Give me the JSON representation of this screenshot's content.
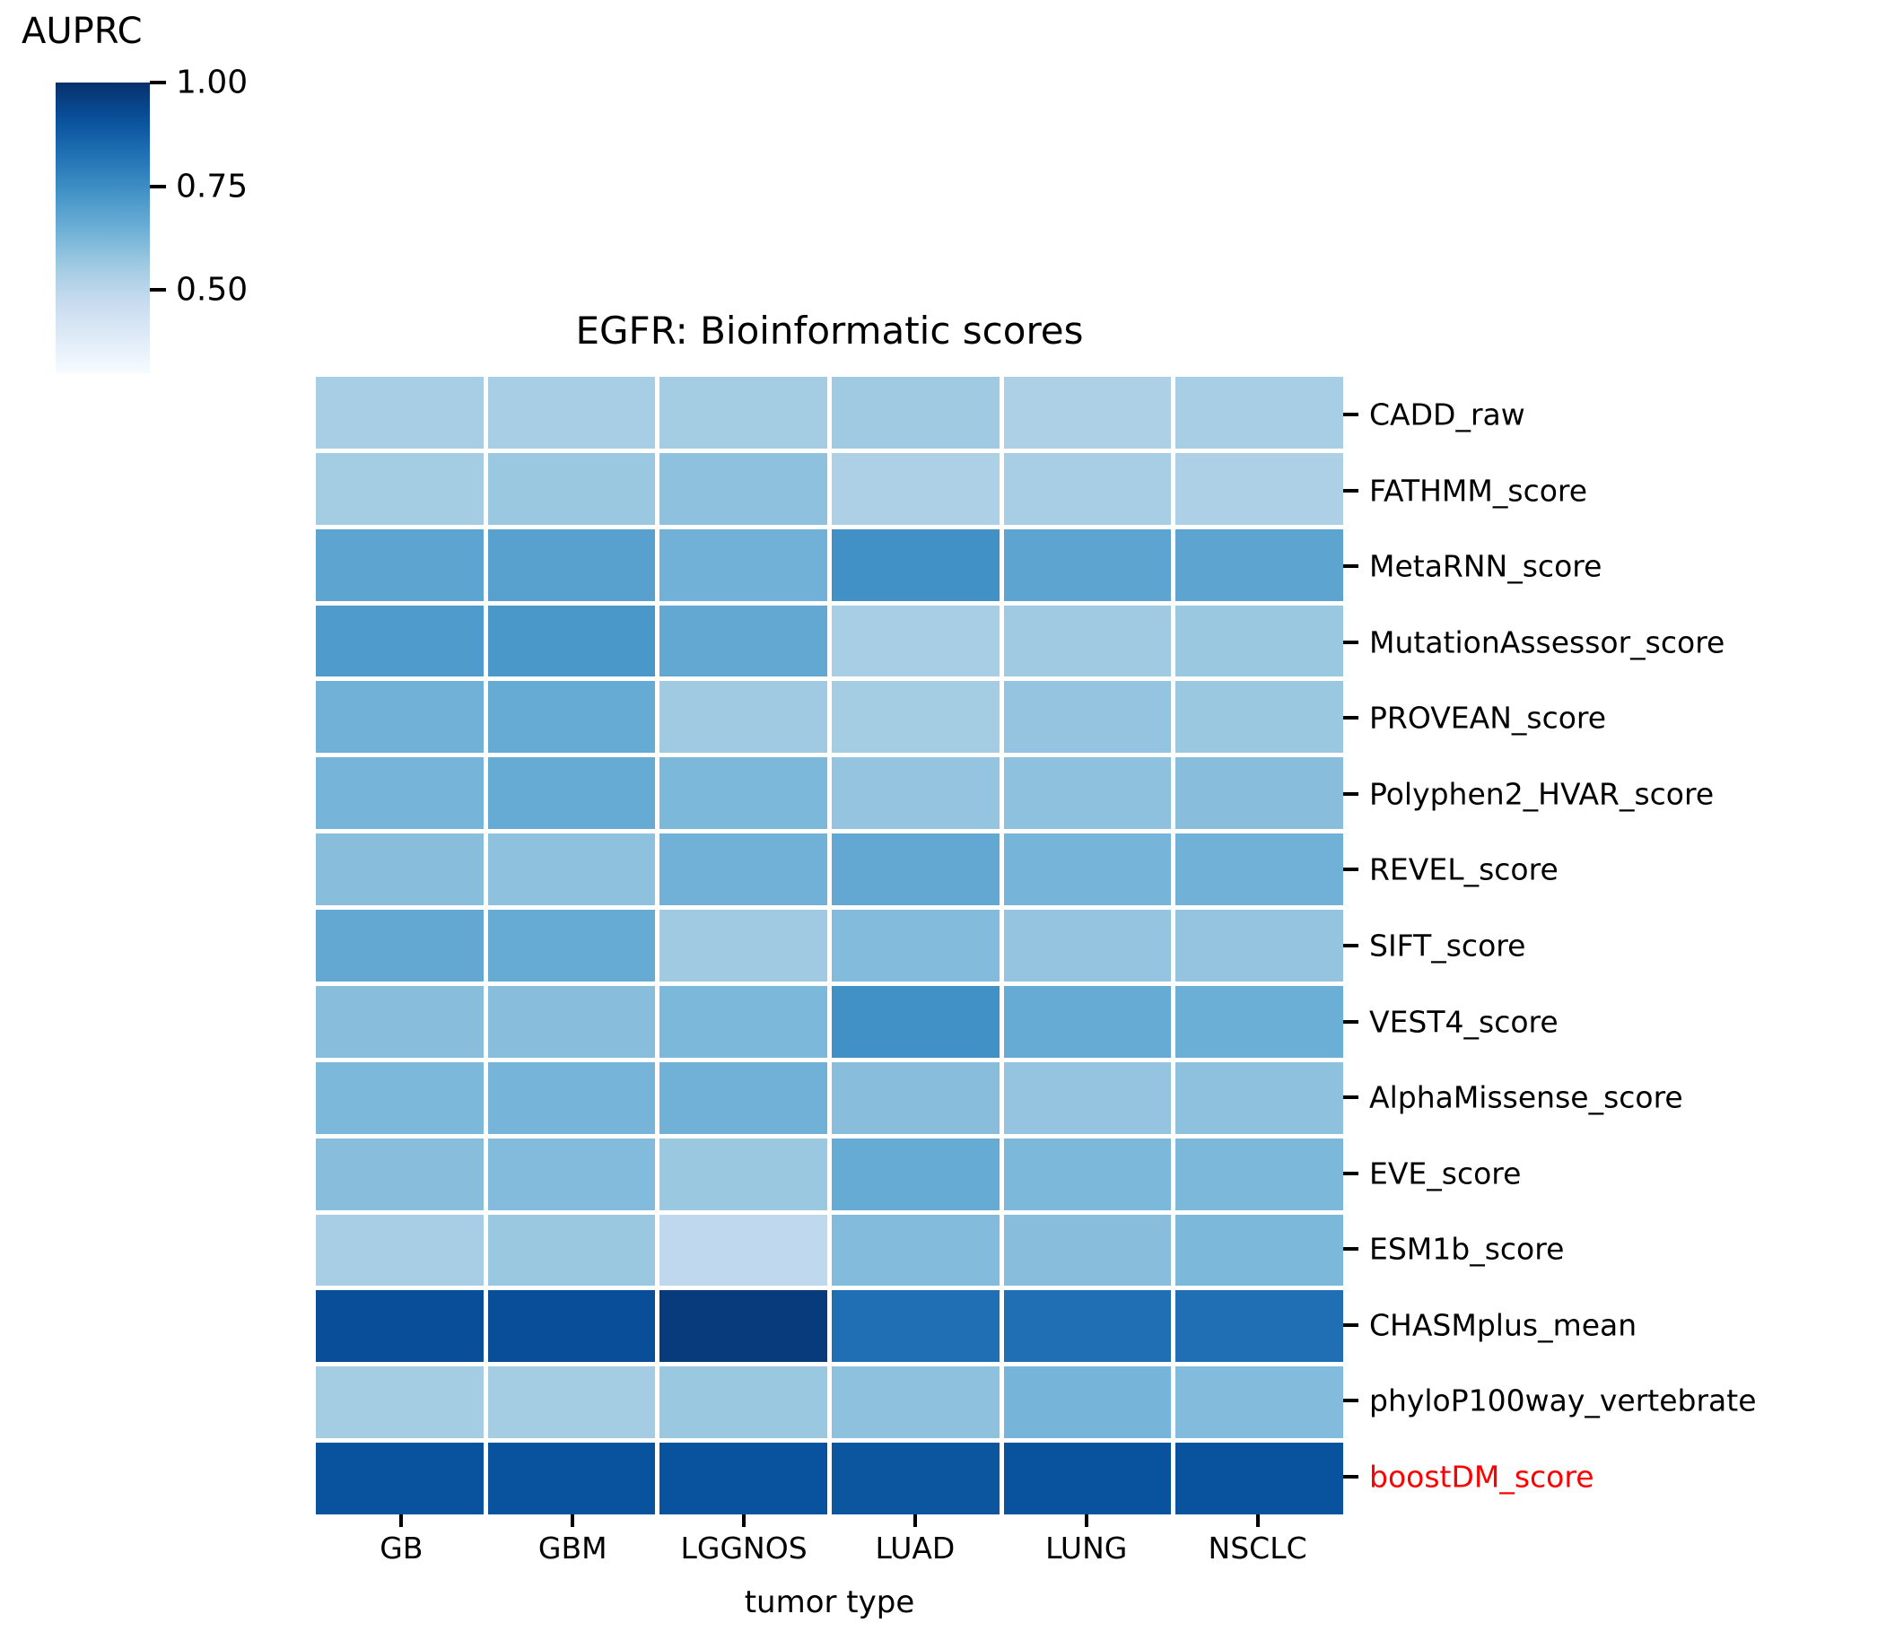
{
  "figure": {
    "background": "#ffffff",
    "text_color": "#000000",
    "highlight_color": "#ff0000",
    "cell_gap_color": "#ffffff"
  },
  "chart_data": {
    "type": "heatmap",
    "title": "EGFR: Bioinformatic scores",
    "xlabel": "tumor type",
    "ylabel": "",
    "grid": false,
    "legend_position": "colorbar-top-left",
    "colorbar": {
      "label": "AUPRC",
      "vmin": 0.3,
      "vmax": 1.0,
      "tick_labels": [
        "1.00",
        "0.75",
        "0.50"
      ],
      "tick_values": [
        1.0,
        0.75,
        0.5
      ],
      "colormap": "Blues",
      "colormap_stops": [
        "#f7fbff",
        "#deebf7",
        "#c6dbef",
        "#9ecae1",
        "#6baed6",
        "#4292c6",
        "#2171b5",
        "#08519c",
        "#08306b"
      ]
    },
    "categories": [
      "GB",
      "GBM",
      "LGGNOS",
      "LUAD",
      "LUNG",
      "NSCLC"
    ],
    "rows": [
      {
        "label": "CADD_raw",
        "highlighted": false,
        "values": [
          0.54,
          0.54,
          0.55,
          0.56,
          0.53,
          0.54
        ]
      },
      {
        "label": "FATHMM_score",
        "highlighted": false,
        "values": [
          0.55,
          0.57,
          0.59,
          0.53,
          0.54,
          0.53
        ]
      },
      {
        "label": "MetaRNN_score",
        "highlighted": false,
        "values": [
          0.68,
          0.69,
          0.64,
          0.74,
          0.68,
          0.68
        ]
      },
      {
        "label": "MutationAssessor_score",
        "highlighted": false,
        "values": [
          0.71,
          0.72,
          0.67,
          0.54,
          0.56,
          0.57
        ]
      },
      {
        "label": "PROVEAN_score",
        "highlighted": false,
        "values": [
          0.64,
          0.66,
          0.56,
          0.55,
          0.58,
          0.57
        ]
      },
      {
        "label": "Polyphen2_HVAR_score",
        "highlighted": false,
        "values": [
          0.63,
          0.66,
          0.62,
          0.58,
          0.59,
          0.6
        ]
      },
      {
        "label": "REVEL_score",
        "highlighted": false,
        "values": [
          0.6,
          0.59,
          0.64,
          0.67,
          0.63,
          0.64
        ]
      },
      {
        "label": "SIFT_score",
        "highlighted": false,
        "values": [
          0.67,
          0.66,
          0.56,
          0.61,
          0.58,
          0.58
        ]
      },
      {
        "label": "VEST4_score",
        "highlighted": false,
        "values": [
          0.6,
          0.6,
          0.62,
          0.74,
          0.66,
          0.65
        ]
      },
      {
        "label": "AlphaMissense_score",
        "highlighted": false,
        "values": [
          0.62,
          0.63,
          0.64,
          0.6,
          0.58,
          0.59
        ]
      },
      {
        "label": "EVE_score",
        "highlighted": false,
        "values": [
          0.6,
          0.61,
          0.57,
          0.66,
          0.62,
          0.62
        ]
      },
      {
        "label": "ESM1b_score",
        "highlighted": false,
        "values": [
          0.54,
          0.57,
          0.49,
          0.61,
          0.6,
          0.62
        ]
      },
      {
        "label": "CHASMplus_mean",
        "highlighted": false,
        "values": [
          0.92,
          0.92,
          0.97,
          0.83,
          0.83,
          0.83
        ]
      },
      {
        "label": "phyloP100way_vertebrate",
        "highlighted": false,
        "values": [
          0.55,
          0.55,
          0.57,
          0.59,
          0.63,
          0.61
        ]
      },
      {
        "label": "boostDM_score",
        "highlighted": true,
        "values": [
          0.91,
          0.91,
          0.91,
          0.9,
          0.91,
          0.91
        ]
      }
    ]
  }
}
